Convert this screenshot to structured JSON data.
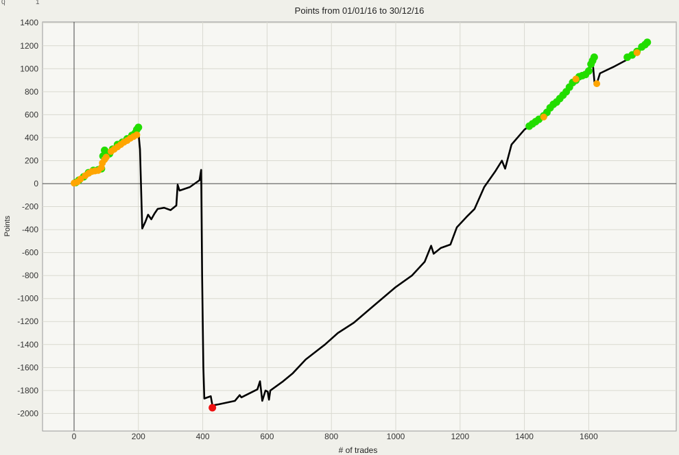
{
  "ruler": {
    "start": "0",
    "end": "1"
  },
  "chart_data": {
    "type": "line",
    "title": "Points from 01/01/16 to 30/12/16",
    "xlabel": "# of trades",
    "ylabel": "Points",
    "xlim": [
      -100,
      1900
    ],
    "ylim": [
      -2150,
      1400
    ],
    "xticks": [
      0,
      200,
      400,
      600,
      800,
      1000,
      1200,
      1400,
      1600
    ],
    "yticks": [
      1400,
      1200,
      1000,
      800,
      600,
      400,
      200,
      0,
      -200,
      -400,
      -600,
      -800,
      -1000,
      -1200,
      -1400,
      -1600,
      -1800,
      -2000
    ],
    "grid": true,
    "colors": {
      "line": "#000000",
      "new_high": "#22dd00",
      "near_high": "#ffa500",
      "max_drawdown": "#ee1111",
      "grid": "#d9d9d0",
      "axis": "#444444"
    },
    "series": [
      {
        "type": "line",
        "points": [
          [
            0,
            0
          ],
          [
            15,
            25
          ],
          [
            30,
            60
          ],
          [
            50,
            100
          ],
          [
            70,
            110
          ],
          [
            85,
            130
          ],
          [
            95,
            200
          ],
          [
            110,
            260
          ],
          [
            130,
            300
          ],
          [
            150,
            340
          ],
          [
            170,
            380
          ],
          [
            190,
            420
          ],
          [
            200,
            450
          ],
          [
            205,
            300
          ],
          [
            212,
            -390
          ],
          [
            222,
            -330
          ],
          [
            230,
            -270
          ],
          [
            240,
            -310
          ],
          [
            250,
            -260
          ],
          [
            260,
            -220
          ],
          [
            280,
            -210
          ],
          [
            300,
            -230
          ],
          [
            318,
            -190
          ],
          [
            322,
            -10
          ],
          [
            328,
            -60
          ],
          [
            360,
            -30
          ],
          [
            390,
            30
          ],
          [
            395,
            120
          ],
          [
            398,
            -800
          ],
          [
            402,
            -1600
          ],
          [
            405,
            -1870
          ],
          [
            415,
            -1860
          ],
          [
            425,
            -1850
          ],
          [
            430,
            -1930
          ],
          [
            450,
            -1920
          ],
          [
            500,
            -1890
          ],
          [
            515,
            -1840
          ],
          [
            520,
            -1860
          ],
          [
            570,
            -1790
          ],
          [
            578,
            -1720
          ],
          [
            585,
            -1890
          ],
          [
            595,
            -1800
          ],
          [
            602,
            -1810
          ],
          [
            606,
            -1880
          ],
          [
            610,
            -1800
          ],
          [
            650,
            -1720
          ],
          [
            680,
            -1650
          ],
          [
            720,
            -1530
          ],
          [
            780,
            -1400
          ],
          [
            820,
            -1300
          ],
          [
            870,
            -1210
          ],
          [
            920,
            -1090
          ],
          [
            1000,
            -900
          ],
          [
            1050,
            -800
          ],
          [
            1090,
            -680
          ],
          [
            1110,
            -540
          ],
          [
            1118,
            -610
          ],
          [
            1140,
            -560
          ],
          [
            1170,
            -530
          ],
          [
            1190,
            -380
          ],
          [
            1220,
            -290
          ],
          [
            1245,
            -220
          ],
          [
            1275,
            -30
          ],
          [
            1310,
            110
          ],
          [
            1330,
            200
          ],
          [
            1340,
            130
          ],
          [
            1360,
            340
          ],
          [
            1400,
            470
          ],
          [
            1450,
            570
          ],
          [
            1500,
            710
          ],
          [
            1550,
            880
          ],
          [
            1590,
            950
          ],
          [
            1612,
            1070
          ],
          [
            1618,
            880
          ],
          [
            1625,
            870
          ],
          [
            1635,
            960
          ],
          [
            1680,
            1020
          ],
          [
            1720,
            1080
          ],
          [
            1780,
            1220
          ]
        ]
      },
      {
        "type": "scatter",
        "role": "new_high",
        "points": [
          [
            5,
            10
          ],
          [
            15,
            30
          ],
          [
            30,
            60
          ],
          [
            45,
            95
          ],
          [
            60,
            115
          ],
          [
            75,
            120
          ],
          [
            85,
            130
          ],
          [
            90,
            240
          ],
          [
            95,
            290
          ],
          [
            110,
            260
          ],
          [
            120,
            300
          ],
          [
            135,
            340
          ],
          [
            150,
            360
          ],
          [
            165,
            390
          ],
          [
            180,
            420
          ],
          [
            190,
            440
          ],
          [
            195,
            470
          ],
          [
            200,
            490
          ],
          [
            1415,
            500
          ],
          [
            1425,
            520
          ],
          [
            1435,
            540
          ],
          [
            1445,
            560
          ],
          [
            1460,
            590
          ],
          [
            1470,
            620
          ],
          [
            1480,
            660
          ],
          [
            1490,
            690
          ],
          [
            1500,
            710
          ],
          [
            1510,
            740
          ],
          [
            1520,
            770
          ],
          [
            1530,
            800
          ],
          [
            1540,
            840
          ],
          [
            1550,
            880
          ],
          [
            1560,
            900
          ],
          [
            1570,
            930
          ],
          [
            1580,
            940
          ],
          [
            1590,
            950
          ],
          [
            1600,
            980
          ],
          [
            1607,
            1040
          ],
          [
            1612,
            1070
          ],
          [
            1617,
            1100
          ],
          [
            1720,
            1100
          ],
          [
            1735,
            1120
          ],
          [
            1750,
            1150
          ],
          [
            1765,
            1190
          ],
          [
            1775,
            1210
          ],
          [
            1782,
            1230
          ]
        ]
      },
      {
        "type": "scatter",
        "role": "near_high",
        "points": [
          [
            0,
            5
          ],
          [
            10,
            15
          ],
          [
            20,
            40
          ],
          [
            35,
            70
          ],
          [
            45,
            90
          ],
          [
            55,
            105
          ],
          [
            65,
            110
          ],
          [
            75,
            115
          ],
          [
            85,
            140
          ],
          [
            88,
            180
          ],
          [
            95,
            210
          ],
          [
            100,
            230
          ],
          [
            115,
            280
          ],
          [
            125,
            300
          ],
          [
            135,
            320
          ],
          [
            145,
            340
          ],
          [
            155,
            360
          ],
          [
            165,
            375
          ],
          [
            175,
            395
          ],
          [
            185,
            410
          ],
          [
            195,
            425
          ],
          [
            1460,
            580
          ],
          [
            1560,
            910
          ],
          [
            1625,
            870
          ],
          [
            1750,
            1140
          ]
        ]
      },
      {
        "type": "scatter",
        "role": "max_drawdown",
        "points": [
          [
            430,
            -1950
          ]
        ]
      }
    ]
  }
}
